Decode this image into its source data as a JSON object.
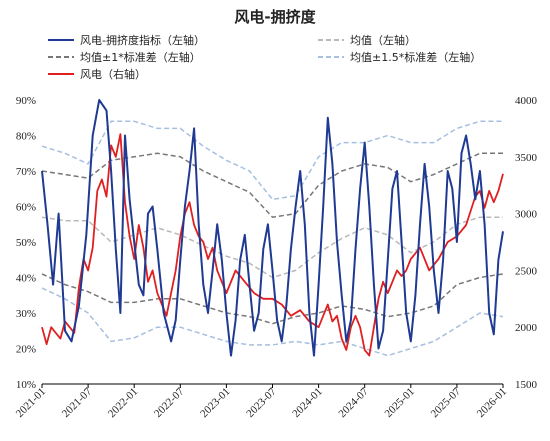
{
  "chart_data": {
    "type": "line",
    "title": "风电-拥挤度",
    "x_ticks": [
      "2021-01",
      "2021-07",
      "2022-01",
      "2022-07",
      "2023-01",
      "2023-07",
      "2024-01",
      "2024-07",
      "2025-01",
      "2025-07",
      "2026-01"
    ],
    "y_left": {
      "min": 10,
      "max": 90,
      "ticks": [
        "10%",
        "20%",
        "30%",
        "40%",
        "50%",
        "60%",
        "70%",
        "80%",
        "90%"
      ]
    },
    "y_right": {
      "min": 1500,
      "max": 4000,
      "ticks": [
        "1500",
        "2000",
        "2500",
        "3000",
        "3500",
        "4000"
      ]
    },
    "legend": [
      {
        "label": "风电-拥挤度指标（左轴）",
        "color": "#1f3a93",
        "dash": "solid"
      },
      {
        "label": "均值（左轴）",
        "color": "#b8b8b8",
        "dash": "dashed"
      },
      {
        "label": "均值±1*标准差（左轴）",
        "color": "#777777",
        "dash": "dashed"
      },
      {
        "label": "均值±1.5*标准差（左轴）",
        "color": "#a7bfe0",
        "dash": "dashed"
      },
      {
        "label": "风电（右轴）",
        "color": "#e02020",
        "dash": "solid"
      }
    ],
    "series": [
      {
        "name": "风电-拥挤度指标（左轴）",
        "axis": "left",
        "color": "#1f3a93",
        "x": [
          2021.0,
          2021.06,
          2021.12,
          2021.18,
          2021.25,
          2021.32,
          2021.4,
          2021.48,
          2021.55,
          2021.62,
          2021.7,
          2021.75,
          2021.8,
          2021.85,
          2021.9,
          2021.95,
          2022.0,
          2022.05,
          2022.1,
          2022.15,
          2022.2,
          2022.25,
          2022.32,
          2022.4,
          2022.45,
          2022.5,
          2022.55,
          2022.6,
          2022.65,
          2022.7,
          2022.75,
          2022.8,
          2022.85,
          2022.9,
          2022.95,
          2023.0,
          2023.05,
          2023.1,
          2023.15,
          2023.2,
          2023.25,
          2023.3,
          2023.35,
          2023.4,
          2023.45,
          2023.5,
          2023.55,
          2023.6,
          2023.65,
          2023.7,
          2023.75,
          2023.8,
          2023.85,
          2023.9,
          2023.95,
          2024.0,
          2024.05,
          2024.1,
          2024.15,
          2024.2,
          2024.25,
          2024.3,
          2024.35,
          2024.4,
          2024.45,
          2024.5,
          2024.55,
          2024.6,
          2024.65,
          2024.7,
          2024.75,
          2024.8,
          2024.85,
          2024.9,
          2024.95,
          2025.0,
          2025.05,
          2025.1,
          2025.15,
          2025.2,
          2025.25,
          2025.3,
          2025.35,
          2025.4,
          2025.45,
          2025.5,
          2025.55,
          2025.6,
          2025.65,
          2025.7,
          2025.75,
          2025.8,
          2025.85,
          2025.9,
          2025.95,
          2026.0
        ],
        "y": [
          70,
          55,
          38,
          58,
          25,
          22,
          32,
          52,
          80,
          90,
          87,
          70,
          48,
          30,
          80,
          62,
          50,
          38,
          35,
          58,
          60,
          48,
          30,
          22,
          28,
          45,
          60,
          70,
          82,
          55,
          38,
          30,
          42,
          55,
          45,
          30,
          18,
          28,
          45,
          52,
          38,
          25,
          30,
          48,
          55,
          42,
          28,
          22,
          32,
          48,
          60,
          70,
          55,
          30,
          18,
          38,
          60,
          85,
          72,
          50,
          35,
          22,
          28,
          48,
          65,
          78,
          60,
          38,
          20,
          25,
          45,
          65,
          70,
          50,
          30,
          22,
          35,
          55,
          72,
          60,
          42,
          30,
          45,
          70,
          65,
          50,
          75,
          80,
          72,
          62,
          70,
          55,
          30,
          24,
          45,
          53
        ]
      },
      {
        "name": "均值（左轴）",
        "axis": "left",
        "color": "#b8b8b8",
        "x": [
          2021.0,
          2021.25,
          2021.5,
          2021.75,
          2022.0,
          2022.25,
          2022.5,
          2022.75,
          2023.0,
          2023.25,
          2023.5,
          2023.75,
          2024.0,
          2024.25,
          2024.5,
          2024.75,
          2025.0,
          2025.25,
          2025.5,
          2025.75,
          2026.0
        ],
        "y": [
          57,
          56,
          56,
          50,
          52,
          54,
          52,
          49,
          46,
          44,
          40,
          42,
          47,
          51,
          54,
          52,
          47,
          50,
          55,
          57,
          57
        ]
      },
      {
        "name": "均值+1*标准差（左轴）",
        "axis": "left",
        "color": "#777777",
        "x": [
          2021.0,
          2021.25,
          2021.5,
          2021.75,
          2022.0,
          2022.25,
          2022.5,
          2022.75,
          2023.0,
          2023.25,
          2023.5,
          2023.75,
          2024.0,
          2024.25,
          2024.5,
          2024.75,
          2025.0,
          2025.25,
          2025.5,
          2025.75,
          2026.0
        ],
        "y": [
          70,
          69,
          68,
          73,
          74,
          75,
          74,
          70,
          67,
          64,
          57,
          58,
          66,
          70,
          72,
          71,
          67,
          69,
          72,
          75,
          75
        ]
      },
      {
        "name": "均值-1*标准差（左轴）",
        "axis": "left",
        "color": "#777777",
        "x": [
          2021.0,
          2021.25,
          2021.5,
          2021.75,
          2022.0,
          2022.25,
          2022.5,
          2022.75,
          2023.0,
          2023.25,
          2023.5,
          2023.75,
          2024.0,
          2024.25,
          2024.5,
          2024.75,
          2025.0,
          2025.25,
          2025.5,
          2025.75,
          2026.0
        ],
        "y": [
          41,
          38,
          36,
          33,
          33,
          34,
          34,
          32,
          30,
          29,
          27,
          29,
          30,
          32,
          31,
          29,
          30,
          32,
          38,
          40,
          41
        ]
      },
      {
        "name": "均值+1.5*标准差（左轴）",
        "axis": "left",
        "color": "#a7bfe0",
        "x": [
          2021.0,
          2021.25,
          2021.5,
          2021.75,
          2022.0,
          2022.25,
          2022.5,
          2022.75,
          2023.0,
          2023.25,
          2023.5,
          2023.75,
          2024.0,
          2024.25,
          2024.5,
          2024.75,
          2025.0,
          2025.25,
          2025.5,
          2025.75,
          2026.0
        ],
        "y": [
          77,
          75,
          72,
          84,
          84,
          82,
          82,
          77,
          73,
          70,
          62,
          63,
          74,
          78,
          78,
          80,
          78,
          78,
          82,
          84,
          84
        ]
      },
      {
        "name": "均值-1.5*标准差（左轴）",
        "axis": "left",
        "color": "#a7bfe0",
        "x": [
          2021.0,
          2021.25,
          2021.5,
          2021.75,
          2022.0,
          2022.25,
          2022.5,
          2022.75,
          2023.0,
          2023.25,
          2023.5,
          2023.75,
          2024.0,
          2024.25,
          2024.5,
          2024.75,
          2025.0,
          2025.25,
          2025.5,
          2025.75,
          2026.0
        ],
        "y": [
          37,
          34,
          30,
          22,
          23,
          26,
          26,
          24,
          22,
          21,
          21,
          22,
          21,
          22,
          20,
          18,
          20,
          22,
          26,
          30,
          29
        ]
      },
      {
        "name": "风电（右轴）",
        "axis": "right",
        "color": "#e02020",
        "x": [
          2021.0,
          2021.05,
          2021.1,
          2021.15,
          2021.2,
          2021.25,
          2021.3,
          2021.35,
          2021.4,
          2021.45,
          2021.5,
          2021.55,
          2021.6,
          2021.65,
          2021.7,
          2021.75,
          2021.8,
          2021.85,
          2021.9,
          2021.95,
          2022.0,
          2022.05,
          2022.1,
          2022.15,
          2022.2,
          2022.25,
          2022.3,
          2022.35,
          2022.4,
          2022.45,
          2022.5,
          2022.55,
          2022.6,
          2022.65,
          2022.7,
          2022.75,
          2022.8,
          2022.85,
          2022.9,
          2022.95,
          2023.0,
          2023.1,
          2023.2,
          2023.3,
          2023.4,
          2023.5,
          2023.6,
          2023.7,
          2023.8,
          2023.9,
          2024.0,
          2024.05,
          2024.1,
          2024.15,
          2024.2,
          2024.25,
          2024.3,
          2024.35,
          2024.4,
          2024.45,
          2024.5,
          2024.55,
          2024.6,
          2024.65,
          2024.7,
          2024.75,
          2024.8,
          2024.85,
          2024.9,
          2024.95,
          2025.0,
          2025.1,
          2025.2,
          2025.3,
          2025.4,
          2025.5,
          2025.6,
          2025.7,
          2025.75,
          2025.8,
          2025.85,
          2025.9,
          2025.95,
          2026.0
        ],
        "y": [
          2000,
          1850,
          2000,
          1950,
          1900,
          2050,
          2000,
          1950,
          2350,
          2600,
          2500,
          2700,
          3200,
          3300,
          3150,
          3600,
          3500,
          3700,
          3100,
          2800,
          2600,
          2900,
          2700,
          2400,
          2500,
          2300,
          2200,
          2100,
          2300,
          2500,
          2800,
          3000,
          3100,
          2900,
          2800,
          2750,
          2600,
          2700,
          2500,
          2400,
          2300,
          2500,
          2400,
          2300,
          2250,
          2250,
          2200,
          2100,
          2150,
          2050,
          2000,
          2100,
          2200,
          2050,
          2100,
          1900,
          1800,
          2000,
          2100,
          2000,
          1800,
          1750,
          2000,
          2250,
          2400,
          2300,
          2400,
          2500,
          2450,
          2500,
          2600,
          2700,
          2500,
          2600,
          2750,
          2800,
          2900,
          3150,
          3200,
          3050,
          3200,
          3100,
          3200,
          3350
        ]
      }
    ]
  }
}
